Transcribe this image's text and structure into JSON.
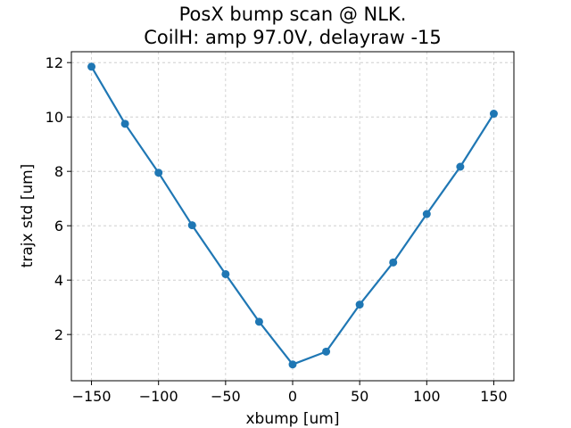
{
  "chart_data": {
    "type": "line",
    "title_line1": "PosX bump scan @ NLK.",
    "title_line2": "CoilH: amp 97.0V, delayraw -15",
    "xlabel": "xbump [um]",
    "ylabel": "trajx std [um]",
    "xlim": [
      -165,
      165
    ],
    "ylim": [
      0.3,
      12.4
    ],
    "xticks": [
      -150,
      -100,
      -50,
      0,
      50,
      100,
      150
    ],
    "xtick_labels": [
      "−150",
      "−100",
      "−50",
      "0",
      "50",
      "100",
      "150"
    ],
    "yticks": [
      2,
      4,
      6,
      8,
      10,
      12
    ],
    "ytick_labels": [
      "2",
      "4",
      "6",
      "8",
      "10",
      "12"
    ],
    "grid": true,
    "series": [
      {
        "color": "#1f77b4",
        "x": [
          -150,
          -125,
          -100,
          -75,
          -50,
          -25,
          0,
          25,
          50,
          75,
          100,
          125,
          150
        ],
        "y": [
          11.85,
          9.75,
          7.95,
          6.02,
          4.22,
          2.47,
          0.9,
          1.37,
          3.1,
          4.65,
          6.43,
          8.17,
          10.12
        ]
      }
    ]
  }
}
